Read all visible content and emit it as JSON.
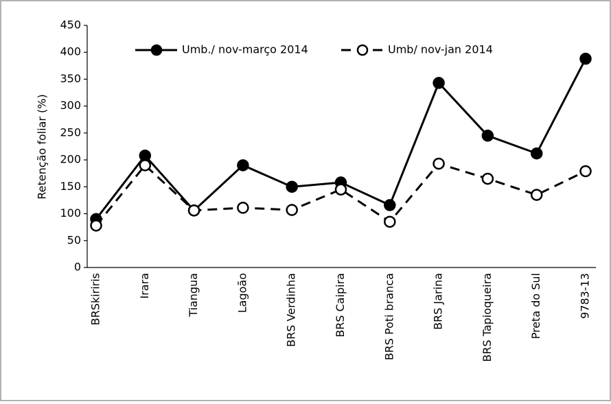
{
  "chart_data": {
    "type": "line",
    "y_label": "Retenção foliar (%)",
    "categories": [
      "BRSkiriris",
      "Irara",
      "Tiangua",
      "Lagoão",
      "BRS Verdinha",
      "BRS Caipira",
      "BRS Poti branca",
      "BRS Jarina",
      "BRS Tapioqueira",
      "Preta do Sul",
      "9783-13"
    ],
    "series": [
      {
        "name": "Umb./ nov-março 2014",
        "color": "#000000",
        "marker": "filled",
        "dashed": false,
        "values": [
          90,
          208,
          106,
          190,
          150,
          158,
          116,
          343,
          245,
          212,
          388
        ]
      },
      {
        "name": "Umb/ nov-jan 2014",
        "color": "#000000",
        "marker": "open",
        "dashed": true,
        "values": [
          78,
          190,
          106,
          111,
          107,
          145,
          85,
          193,
          165,
          135,
          179
        ]
      }
    ],
    "ylim": [
      0,
      450
    ],
    "yticks": [
      0,
      50,
      100,
      150,
      200,
      250,
      300,
      350,
      400,
      450
    ],
    "grid": false,
    "legend": "top"
  }
}
